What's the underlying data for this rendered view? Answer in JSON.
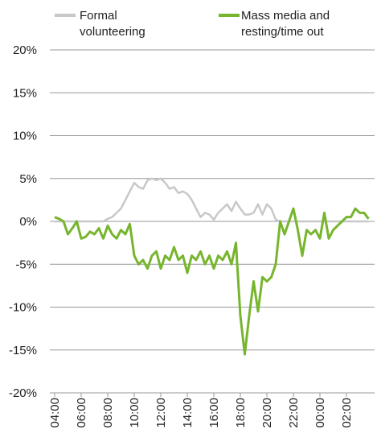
{
  "chart_data": {
    "type": "line",
    "categories": [
      "04:00",
      null,
      null,
      null,
      null,
      null,
      "06:00",
      null,
      null,
      null,
      null,
      null,
      "08:00",
      null,
      null,
      null,
      null,
      null,
      "10:00",
      null,
      null,
      null,
      null,
      null,
      "12:00",
      null,
      null,
      null,
      null,
      null,
      "14:00",
      null,
      null,
      null,
      null,
      null,
      "16:00",
      null,
      null,
      null,
      null,
      null,
      "18:00",
      null,
      null,
      null,
      null,
      null,
      "20:00",
      null,
      null,
      null,
      null,
      null,
      "22:00",
      null,
      null,
      null,
      null,
      null,
      "00:00",
      null,
      null,
      null,
      null,
      null,
      "02:00",
      null,
      null,
      null,
      null,
      null
    ],
    "series": [
      {
        "name": "Formal volunteering",
        "color": "#c8c8c8",
        "values": [
          0,
          0,
          0,
          0,
          0,
          0,
          0,
          0,
          0,
          0,
          0,
          0,
          0.3,
          0.5,
          1,
          1.5,
          2.5,
          3.5,
          4.5,
          4,
          3.8,
          4.8,
          5,
          4.8,
          5,
          4.5,
          3.8,
          4,
          3.3,
          3.5,
          3.2,
          2.5,
          1.5,
          0.5,
          1,
          0.8,
          0.2,
          1,
          1.5,
          2,
          1.2,
          2.3,
          1.5,
          0.8,
          0.8,
          1,
          2,
          0.8,
          2,
          1.5,
          0.2,
          0,
          0,
          0,
          0,
          0,
          0,
          0,
          0,
          0,
          0,
          0,
          0,
          0,
          0,
          0,
          0,
          0,
          0,
          0,
          0,
          0
        ]
      },
      {
        "name": "Mass media and resting/time out",
        "color": "#77b52e",
        "values": [
          0.5,
          0.3,
          0,
          -1.5,
          -0.8,
          0,
          -2,
          -1.8,
          -1.2,
          -1.5,
          -0.8,
          -2,
          -0.5,
          -1.5,
          -2,
          -1,
          -1.5,
          -0.3,
          -4,
          -5,
          -4.5,
          -5.5,
          -4,
          -3.5,
          -5.5,
          -4,
          -4.5,
          -3,
          -4.5,
          -4,
          -6,
          -4,
          -4.5,
          -3.5,
          -5,
          -4,
          -5.5,
          -4,
          -4.5,
          -3.5,
          -5,
          -2.5,
          -11,
          -15.5,
          -11,
          -7,
          -10.5,
          -6.5,
          -7,
          -6.5,
          -5,
          0,
          -1.5,
          0,
          1.5,
          -1,
          -4,
          -1,
          -1.5,
          -1,
          -2,
          1,
          -2,
          -1,
          -0.5,
          0,
          0.5,
          0.5,
          1.5,
          1,
          1,
          0.3
        ]
      }
    ],
    "ylim": [
      -20,
      20
    ],
    "yticks": [
      {
        "value": -20,
        "label": "-20%"
      },
      {
        "value": -15,
        "label": "-15%"
      },
      {
        "value": -10,
        "label": "-10%"
      },
      {
        "value": -5,
        "label": "-5%"
      },
      {
        "value": 0,
        "label": "0%"
      },
      {
        "value": 5,
        "label": "5%"
      },
      {
        "value": 10,
        "label": "10%"
      },
      {
        "value": 15,
        "label": "15%"
      },
      {
        "value": 20,
        "label": "20%"
      }
    ],
    "grid": true
  }
}
